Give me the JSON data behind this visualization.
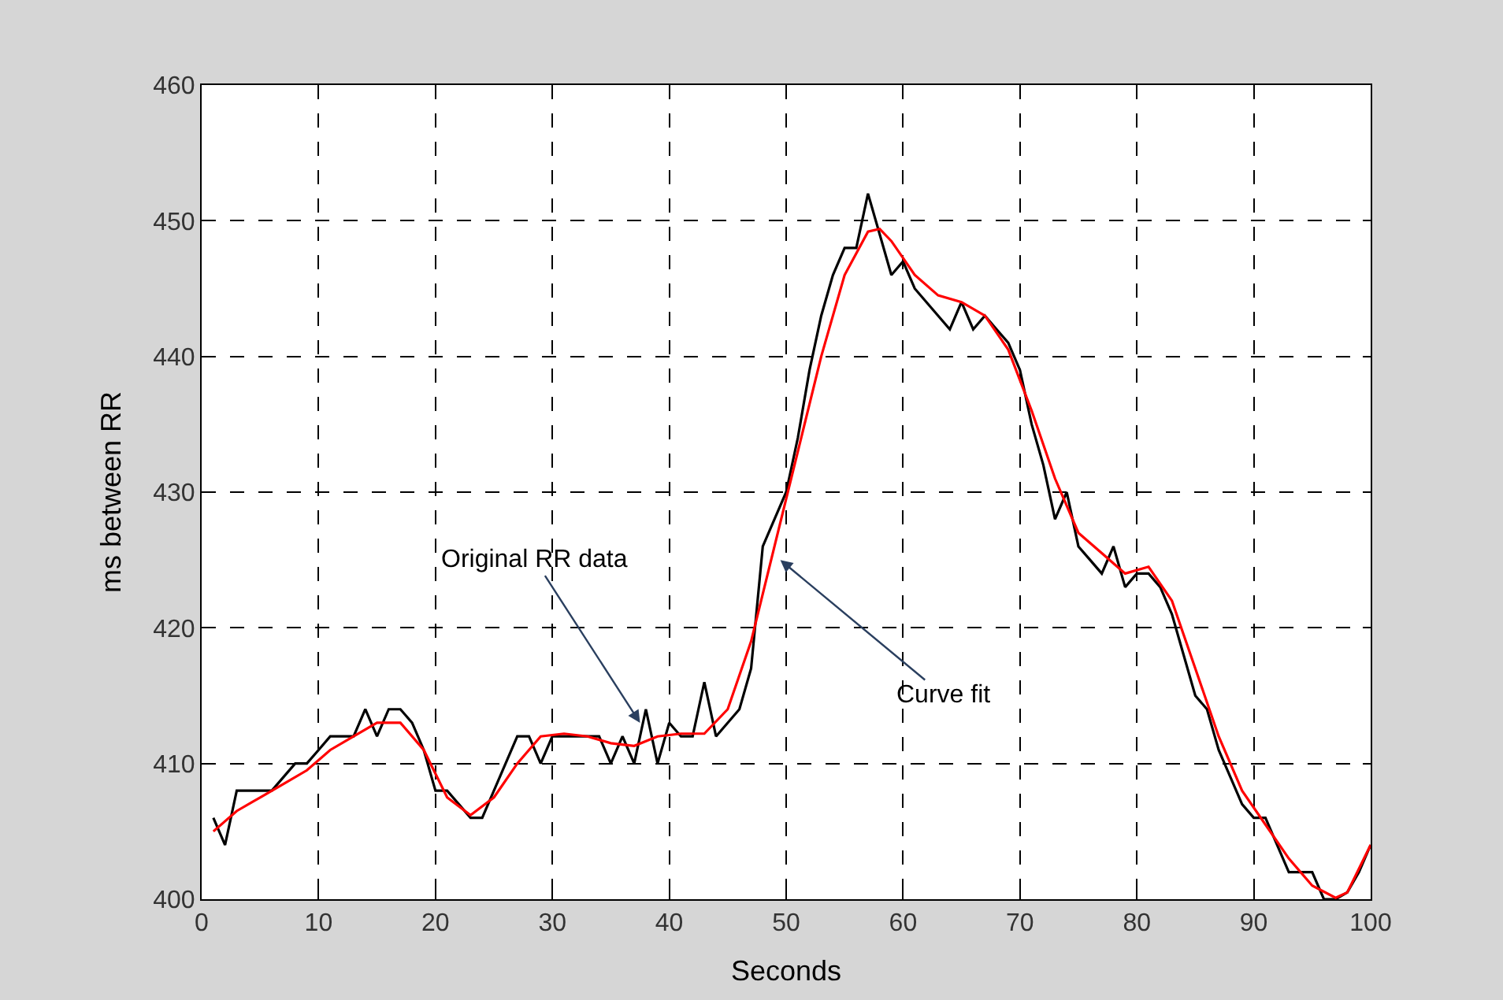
{
  "chart_data": {
    "type": "line",
    "xlabel": "Seconds",
    "ylabel": "ms between RR",
    "xlim": [
      0,
      100
    ],
    "xticks": [
      0,
      10,
      20,
      30,
      40,
      50,
      60,
      70,
      80,
      90,
      100
    ],
    "ylim": [
      400,
      460
    ],
    "yticks": [
      400,
      410,
      420,
      430,
      440,
      450,
      460
    ],
    "grid": true,
    "marker": "none",
    "line_style": "solid",
    "annotations": [
      {
        "text": "Original RR data",
        "x": 37.5,
        "y": 413
      },
      {
        "text": "Curve fit",
        "x": 49.5,
        "y": 425
      }
    ],
    "series": [
      {
        "color": "#000000",
        "x": [
          1,
          2,
          3,
          4,
          5,
          6,
          7,
          8,
          9,
          10,
          11,
          12,
          13,
          14,
          15,
          16,
          17,
          18,
          19,
          20,
          21,
          22,
          23,
          24,
          25,
          26,
          27,
          28,
          29,
          30,
          31,
          32,
          33,
          34,
          35,
          36,
          37,
          38,
          39,
          40,
          41,
          42,
          43,
          44,
          45,
          46,
          47,
          48,
          49,
          50,
          51,
          52,
          53,
          54,
          55,
          56,
          57,
          58,
          59,
          60,
          61,
          62,
          63,
          64,
          65,
          66,
          67,
          68,
          69,
          70,
          71,
          72,
          73,
          74,
          75,
          76,
          77,
          78,
          79,
          80,
          81,
          82,
          83,
          84,
          85,
          86,
          87,
          88,
          89,
          90,
          91,
          92,
          93,
          94,
          95,
          96,
          97,
          98,
          99,
          100
        ],
        "values": [
          406,
          404,
          408,
          408,
          408,
          408,
          409,
          410,
          410,
          411,
          412,
          412,
          412,
          414,
          412,
          414,
          414,
          413,
          411,
          408,
          408,
          407,
          406,
          406,
          408,
          410,
          412,
          412,
          410,
          412,
          412,
          412,
          412,
          412,
          410,
          412,
          410,
          414,
          410,
          413,
          412,
          412,
          416,
          412,
          413,
          414,
          417,
          426,
          428,
          430,
          434,
          439,
          443,
          446,
          448,
          448,
          452,
          449,
          446,
          447,
          445,
          444,
          443,
          442,
          444,
          442,
          443,
          442,
          441,
          439,
          435,
          432,
          428,
          430,
          426,
          425,
          424,
          426,
          423,
          424,
          424,
          423,
          421,
          418,
          415,
          414,
          411,
          409,
          407,
          406,
          406,
          404,
          402,
          402,
          402,
          400,
          400,
          400.5,
          402,
          404
        ]
      },
      {
        "color": "#ff0000",
        "x": [
          1,
          3,
          5,
          7,
          9,
          11,
          13,
          15,
          17,
          19,
          21,
          23,
          25,
          27,
          29,
          31,
          33,
          35,
          37,
          39,
          41,
          43,
          45,
          47,
          49,
          51,
          53,
          55,
          57,
          58,
          59,
          61,
          63,
          65,
          67,
          69,
          71,
          73,
          75,
          77,
          79,
          81,
          83,
          85,
          87,
          89,
          91,
          93,
          95,
          97,
          98,
          100
        ],
        "values": [
          405,
          406.5,
          407.5,
          408.5,
          409.5,
          411,
          412,
          413,
          413,
          411,
          407.5,
          406.2,
          407.5,
          410,
          412,
          412.2,
          412,
          411.5,
          411.3,
          412,
          412.2,
          412.2,
          414,
          419,
          426,
          433,
          440,
          446,
          449.2,
          449.4,
          448.5,
          446,
          444.5,
          444,
          443,
          440.5,
          436,
          431,
          427,
          425.5,
          424,
          424.5,
          422,
          417,
          412,
          408,
          405.5,
          403,
          401,
          400.1,
          400.5,
          404
        ]
      }
    ]
  }
}
